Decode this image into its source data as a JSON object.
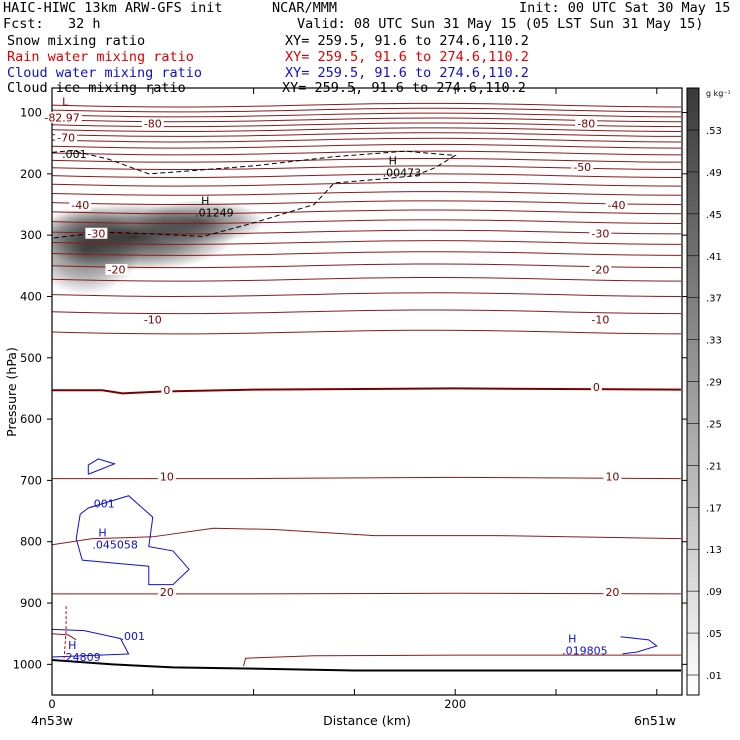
{
  "header": {
    "title": "HAIC-HIWC 13km ARW-GFS init",
    "org": "NCAR/MMM",
    "init": "Init: 00 UTC Sat 30 May 15",
    "fcst": "Fcst:   32 h",
    "valid": "Valid: 08 UTC Sun 31 May 15 (05 LST Sun 31 May 15)",
    "fields": [
      {
        "label": "Snow mixing ratio",
        "xy": "XY= 259.5, 91.6 to 274.6,110.2",
        "color": "#000000"
      },
      {
        "label": "Rain water mixing ratio",
        "xy": "XY= 259.5, 91.6 to 274.6,110.2",
        "color": "#e00000"
      },
      {
        "label": "Cloud water mixing ratio",
        "xy": "XY= 259.5, 91.6 to 274.6,110.2",
        "color": "#1010d0"
      },
      {
        "label": "Cloud ice mixing ratio",
        "xy": "XY= 259.5, 91.6 to 274.6,110.2",
        "color": "#000000"
      }
    ]
  },
  "chart_data": {
    "type": "contour cross-section",
    "ylabel": "Pressure (hPa)",
    "xlabel": "Distance (km)",
    "x_ticks": [
      "0",
      "200"
    ],
    "x_range": [
      0,
      300
    ],
    "y_ticks": [
      "100",
      "200",
      "300",
      "400",
      "500",
      "600",
      "700",
      "800",
      "900",
      "1000"
    ],
    "y_range": [
      60,
      1050
    ],
    "left_endpoint": "4n53w",
    "right_endpoint": "6n51w",
    "temperature_labels": [
      {
        "text": "-82.97",
        "x": 5,
        "p": 112
      },
      {
        "text": "-80",
        "x": 50,
        "p": 122
      },
      {
        "text": "-80",
        "x": 265,
        "p": 122
      },
      {
        "text": "-70",
        "x": 7,
        "p": 145
      },
      {
        "text": "-50",
        "x": 263,
        "p": 193
      },
      {
        "text": "-40",
        "x": 14,
        "p": 255
      },
      {
        "text": "-40",
        "x": 280,
        "p": 255
      },
      {
        "text": "-30",
        "x": 22,
        "p": 301
      },
      {
        "text": "-30",
        "x": 272,
        "p": 301
      },
      {
        "text": "-20",
        "x": 32,
        "p": 360
      },
      {
        "text": "-20",
        "x": 272,
        "p": 360
      },
      {
        "text": "-10",
        "x": 50,
        "p": 442
      },
      {
        "text": "-10",
        "x": 272,
        "p": 442
      },
      {
        "text": "0",
        "x": 57,
        "p": 557
      },
      {
        "text": "0",
        "x": 270,
        "p": 552
      },
      {
        "text": "10",
        "x": 57,
        "p": 698
      },
      {
        "text": "10",
        "x": 278,
        "p": 698
      },
      {
        "text": "20",
        "x": 57,
        "p": 886
      },
      {
        "text": "20",
        "x": 278,
        "p": 886
      }
    ],
    "extrema_labels": [
      {
        "marker": "L",
        "text": "",
        "x": 4,
        "p": 92,
        "color": "#7a0000"
      },
      {
        "marker": "H",
        "text": ".00473",
        "x": 166,
        "p": 188,
        "color": "#000000"
      },
      {
        "marker": "H",
        "text": ".01249",
        "x": 73,
        "p": 253,
        "color": "#000000"
      },
      {
        "marker": "H",
        "text": ".045058",
        "x": 22,
        "p": 795,
        "color": "#1010d0"
      },
      {
        "marker": "H",
        "text": ".24809",
        "x": 7,
        "p": 978,
        "color": "#1010d0"
      },
      {
        "marker": "H",
        "text": ".019805",
        "x": 255,
        "p": 968,
        "color": "#1010d0"
      }
    ],
    "contour_value_labels": [
      {
        "text": ".001",
        "x": 5,
        "p": 168,
        "color": "#000000"
      },
      {
        "text": ".001",
        "x": 19,
        "p": 738,
        "color": "#1010d0"
      },
      {
        "text": ".001",
        "x": 34,
        "p": 954,
        "color": "#1010d0"
      }
    ],
    "colorbar": {
      "unit": "g kg⁻¹",
      "ticks": [
        ".53",
        ".49",
        ".45",
        ".41",
        ".37",
        ".33",
        ".29",
        ".25",
        ".21",
        ".17",
        ".13",
        ".09",
        ".05",
        ".01"
      ]
    }
  }
}
